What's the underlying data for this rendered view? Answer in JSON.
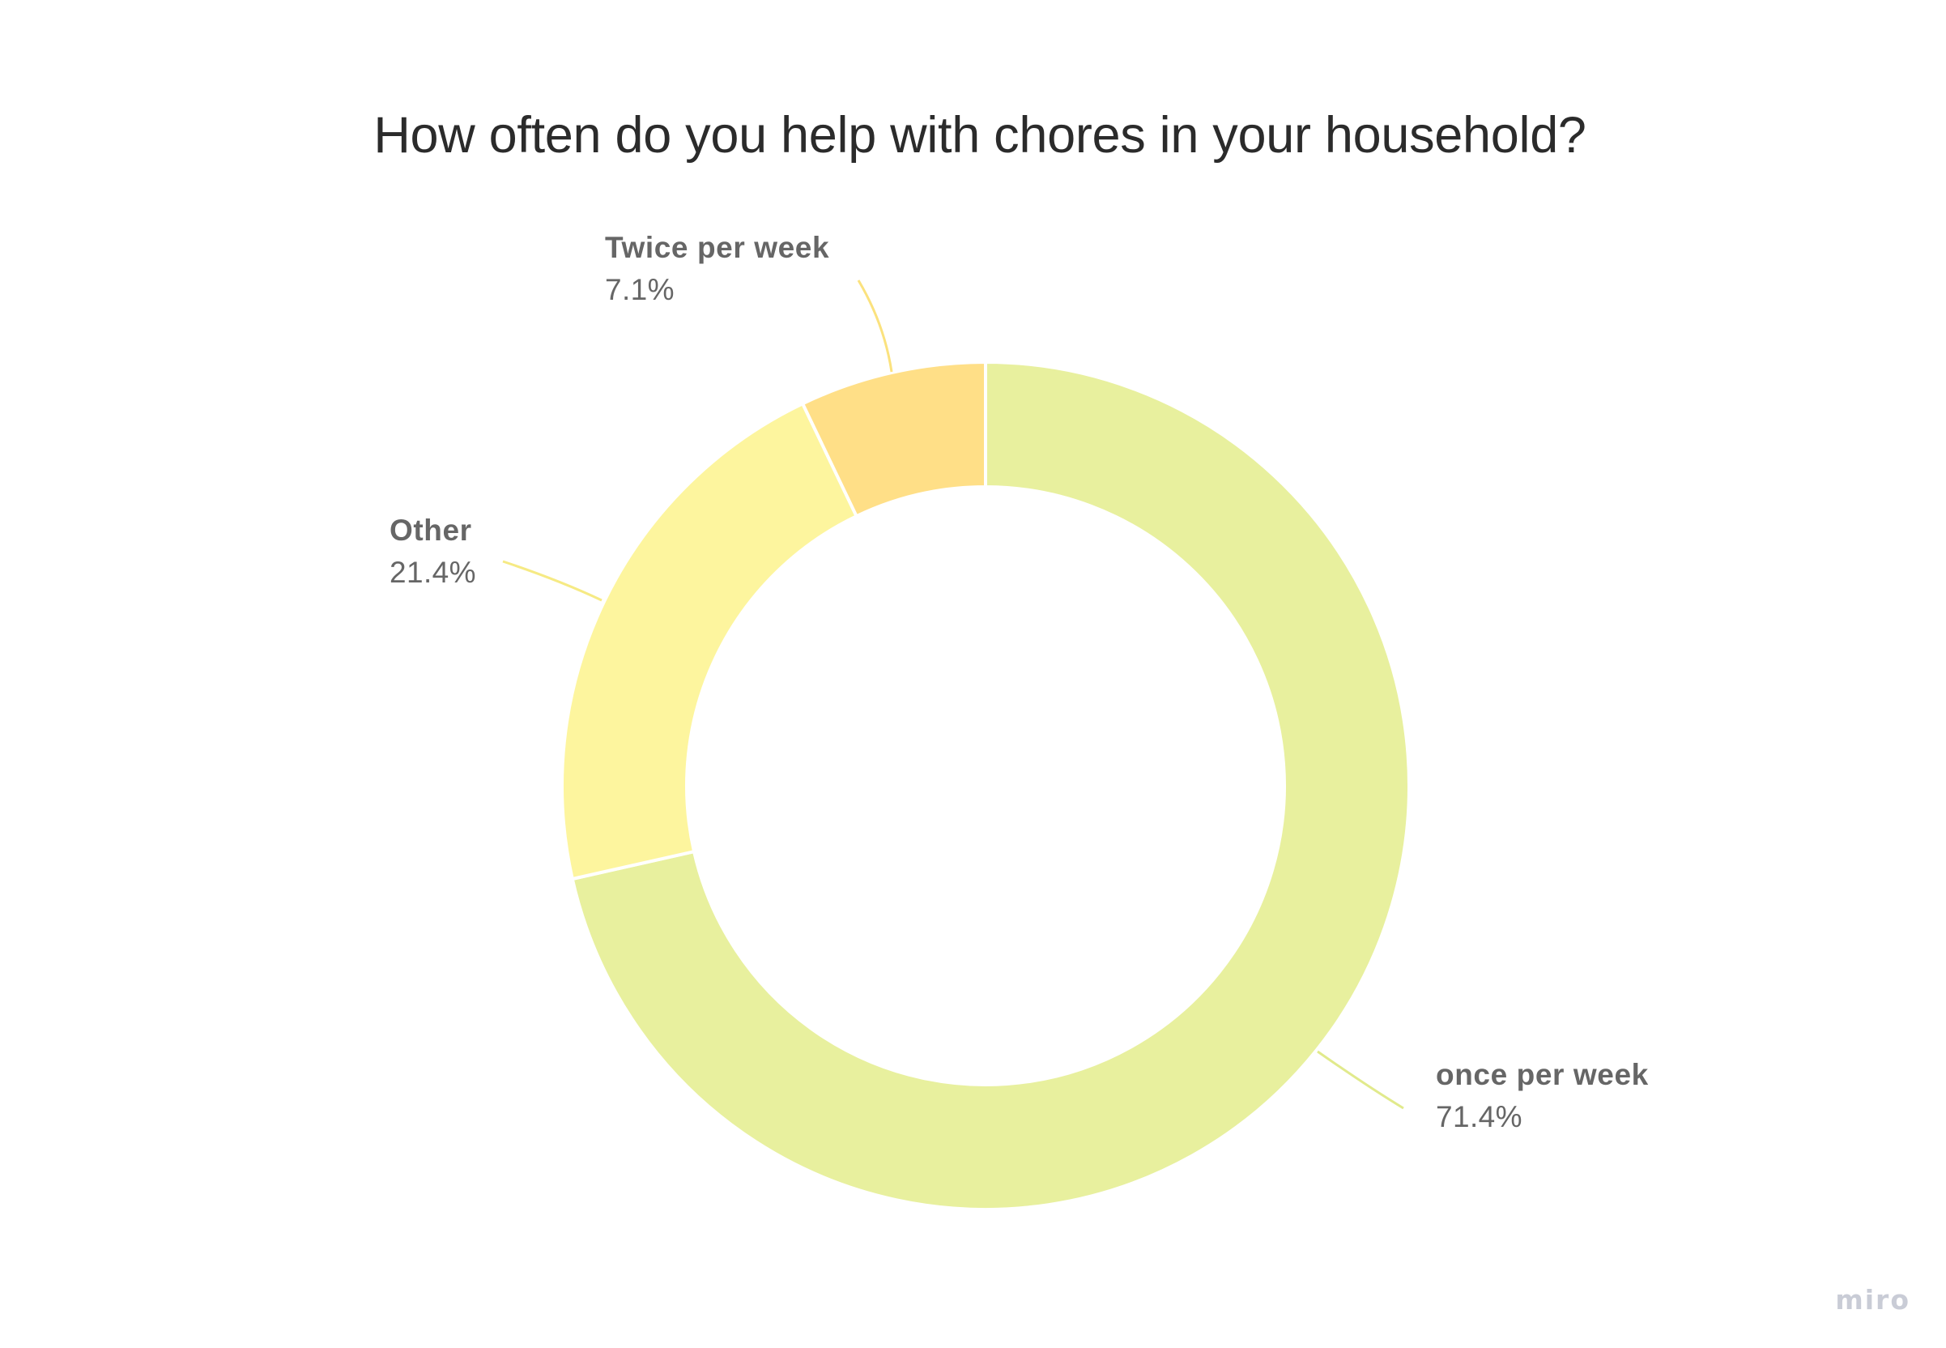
{
  "chart_data": {
    "type": "pie",
    "style": "donut",
    "title": "How often do you help with chores in your household?",
    "slices": [
      {
        "label": "once per week",
        "value": 71.4,
        "value_label": "71.4%",
        "color": "#e8f09e"
      },
      {
        "label": "Other",
        "value": 21.4,
        "value_label": "21.4%",
        "color": "#fdf59e"
      },
      {
        "label": "Twice per week",
        "value": 7.1,
        "value_label": "7.1%",
        "color": "#ffdf87"
      }
    ],
    "start_angle_deg": 0,
    "direction": "clockwise",
    "legend": "none",
    "labels": "outside-with-leader-lines"
  },
  "watermark": "miro"
}
